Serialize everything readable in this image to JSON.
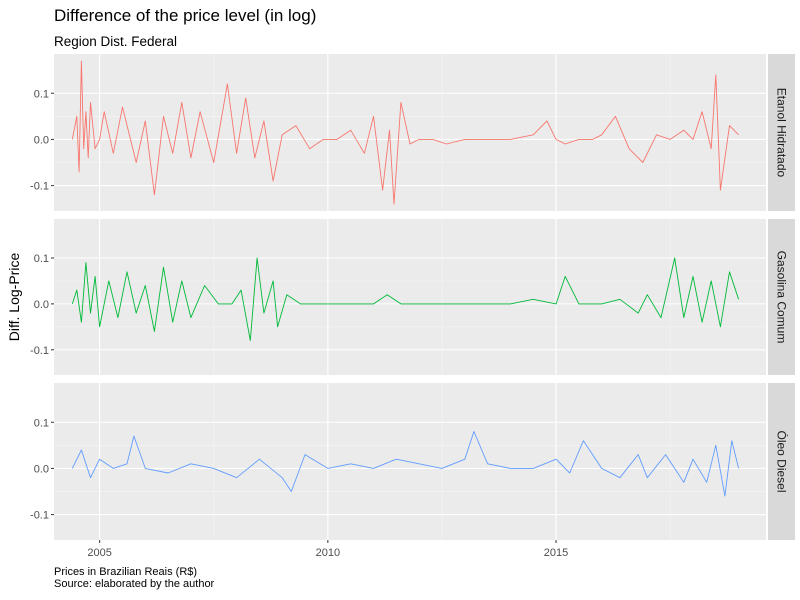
{
  "chart_data": {
    "type": "line",
    "title": "Difference of the price level (in log)",
    "subtitle": "Region Dist. Federal",
    "ylabel": "Diff. Log-Price",
    "xlabel": "",
    "caption": [
      "Prices in Brazilian Reais (R$)",
      "Source: elaborated by the author"
    ],
    "xlim": [
      2004.0,
      2019.6
    ],
    "ylim": [
      -0.155,
      0.185
    ],
    "x_ticks": [
      2005,
      2010,
      2015
    ],
    "x_tick_labels": [
      "2005",
      "2010",
      "2015"
    ],
    "y_ticks": [
      -0.1,
      0.0,
      0.1
    ],
    "y_tick_labels": [
      "-0.1",
      "0.0",
      "0.1"
    ],
    "grid": true,
    "facets": "rows",
    "series": [
      {
        "name": "Etanol Hidratado",
        "color": "#F8766D",
        "x": [
          2004.4,
          2004.5,
          2004.55,
          2004.6,
          2004.65,
          2004.7,
          2004.75,
          2004.8,
          2004.9,
          2005.0,
          2005.1,
          2005.3,
          2005.5,
          2005.8,
          2006.0,
          2006.2,
          2006.4,
          2006.6,
          2006.8,
          2007.0,
          2007.2,
          2007.5,
          2007.8,
          2008.0,
          2008.2,
          2008.4,
          2008.6,
          2008.8,
          2009.0,
          2009.3,
          2009.6,
          2009.9,
          2010.2,
          2010.5,
          2010.8,
          2011.0,
          2011.2,
          2011.35,
          2011.45,
          2011.6,
          2011.8,
          2012.0,
          2012.3,
          2012.6,
          2013.0,
          2013.5,
          2014.0,
          2014.5,
          2014.8,
          2015.0,
          2015.2,
          2015.5,
          2015.8,
          2016.0,
          2016.3,
          2016.6,
          2016.9,
          2017.2,
          2017.5,
          2017.8,
          2018.0,
          2018.2,
          2018.4,
          2018.5,
          2018.6,
          2018.8,
          2019.0
        ],
        "y": [
          0.0,
          0.05,
          -0.07,
          0.17,
          -0.02,
          0.06,
          -0.04,
          0.08,
          -0.02,
          0.0,
          0.06,
          -0.03,
          0.07,
          -0.05,
          0.04,
          -0.12,
          0.05,
          -0.03,
          0.08,
          -0.04,
          0.06,
          -0.05,
          0.12,
          -0.03,
          0.09,
          -0.04,
          0.04,
          -0.09,
          0.01,
          0.03,
          -0.02,
          0.0,
          0.0,
          0.02,
          -0.03,
          0.05,
          -0.11,
          0.02,
          -0.14,
          0.08,
          -0.01,
          0.0,
          0.0,
          -0.01,
          0.0,
          0.0,
          0.0,
          0.01,
          0.04,
          0.0,
          -0.01,
          0.0,
          0.0,
          0.01,
          0.05,
          -0.02,
          -0.05,
          0.01,
          0.0,
          0.02,
          0.0,
          0.06,
          -0.02,
          0.14,
          -0.11,
          0.03,
          0.01
        ]
      },
      {
        "name": "Gasolina Comum",
        "color": "#00BA38",
        "x": [
          2004.4,
          2004.5,
          2004.6,
          2004.7,
          2004.8,
          2004.9,
          2005.0,
          2005.2,
          2005.4,
          2005.6,
          2005.8,
          2006.0,
          2006.2,
          2006.4,
          2006.6,
          2006.8,
          2007.0,
          2007.3,
          2007.6,
          2007.9,
          2008.1,
          2008.3,
          2008.45,
          2008.6,
          2008.8,
          2008.9,
          2009.1,
          2009.4,
          2009.7,
          2010.0,
          2010.5,
          2011.0,
          2011.3,
          2011.6,
          2012.0,
          2012.5,
          2013.0,
          2013.5,
          2014.0,
          2014.5,
          2015.0,
          2015.2,
          2015.5,
          2015.8,
          2016.0,
          2016.4,
          2016.8,
          2017.0,
          2017.3,
          2017.6,
          2017.8,
          2018.0,
          2018.2,
          2018.4,
          2018.6,
          2018.8,
          2019.0
        ],
        "y": [
          0.0,
          0.03,
          -0.04,
          0.09,
          -0.02,
          0.06,
          -0.05,
          0.05,
          -0.03,
          0.07,
          -0.02,
          0.04,
          -0.06,
          0.08,
          -0.04,
          0.05,
          -0.03,
          0.04,
          0.0,
          0.0,
          0.03,
          -0.08,
          0.1,
          -0.02,
          0.05,
          -0.05,
          0.02,
          0.0,
          0.0,
          0.0,
          0.0,
          0.0,
          0.02,
          0.0,
          0.0,
          0.0,
          0.0,
          0.0,
          0.0,
          0.01,
          0.0,
          0.06,
          0.0,
          0.0,
          0.0,
          0.01,
          -0.02,
          0.02,
          -0.03,
          0.1,
          -0.03,
          0.06,
          -0.04,
          0.05,
          -0.05,
          0.07,
          0.01
        ]
      },
      {
        "name": "Óleo Diesel",
        "color": "#619CFF",
        "x": [
          2004.4,
          2004.6,
          2004.8,
          2005.0,
          2005.3,
          2005.6,
          2005.75,
          2006.0,
          2006.5,
          2007.0,
          2007.5,
          2008.0,
          2008.5,
          2009.0,
          2009.2,
          2009.5,
          2010.0,
          2010.5,
          2011.0,
          2011.5,
          2012.0,
          2012.5,
          2013.0,
          2013.2,
          2013.5,
          2014.0,
          2014.5,
          2015.0,
          2015.3,
          2015.6,
          2016.0,
          2016.4,
          2016.8,
          2017.0,
          2017.4,
          2017.8,
          2018.0,
          2018.3,
          2018.5,
          2018.7,
          2018.85,
          2019.0
        ],
        "y": [
          0.0,
          0.04,
          -0.02,
          0.02,
          0.0,
          0.01,
          0.07,
          0.0,
          -0.01,
          0.01,
          0.0,
          -0.02,
          0.02,
          -0.02,
          -0.05,
          0.03,
          0.0,
          0.01,
          0.0,
          0.02,
          0.01,
          0.0,
          0.02,
          0.08,
          0.01,
          0.0,
          0.0,
          0.02,
          -0.01,
          0.06,
          0.0,
          -0.02,
          0.03,
          -0.02,
          0.03,
          -0.03,
          0.02,
          -0.03,
          0.05,
          -0.06,
          0.06,
          0.0
        ]
      }
    ]
  }
}
